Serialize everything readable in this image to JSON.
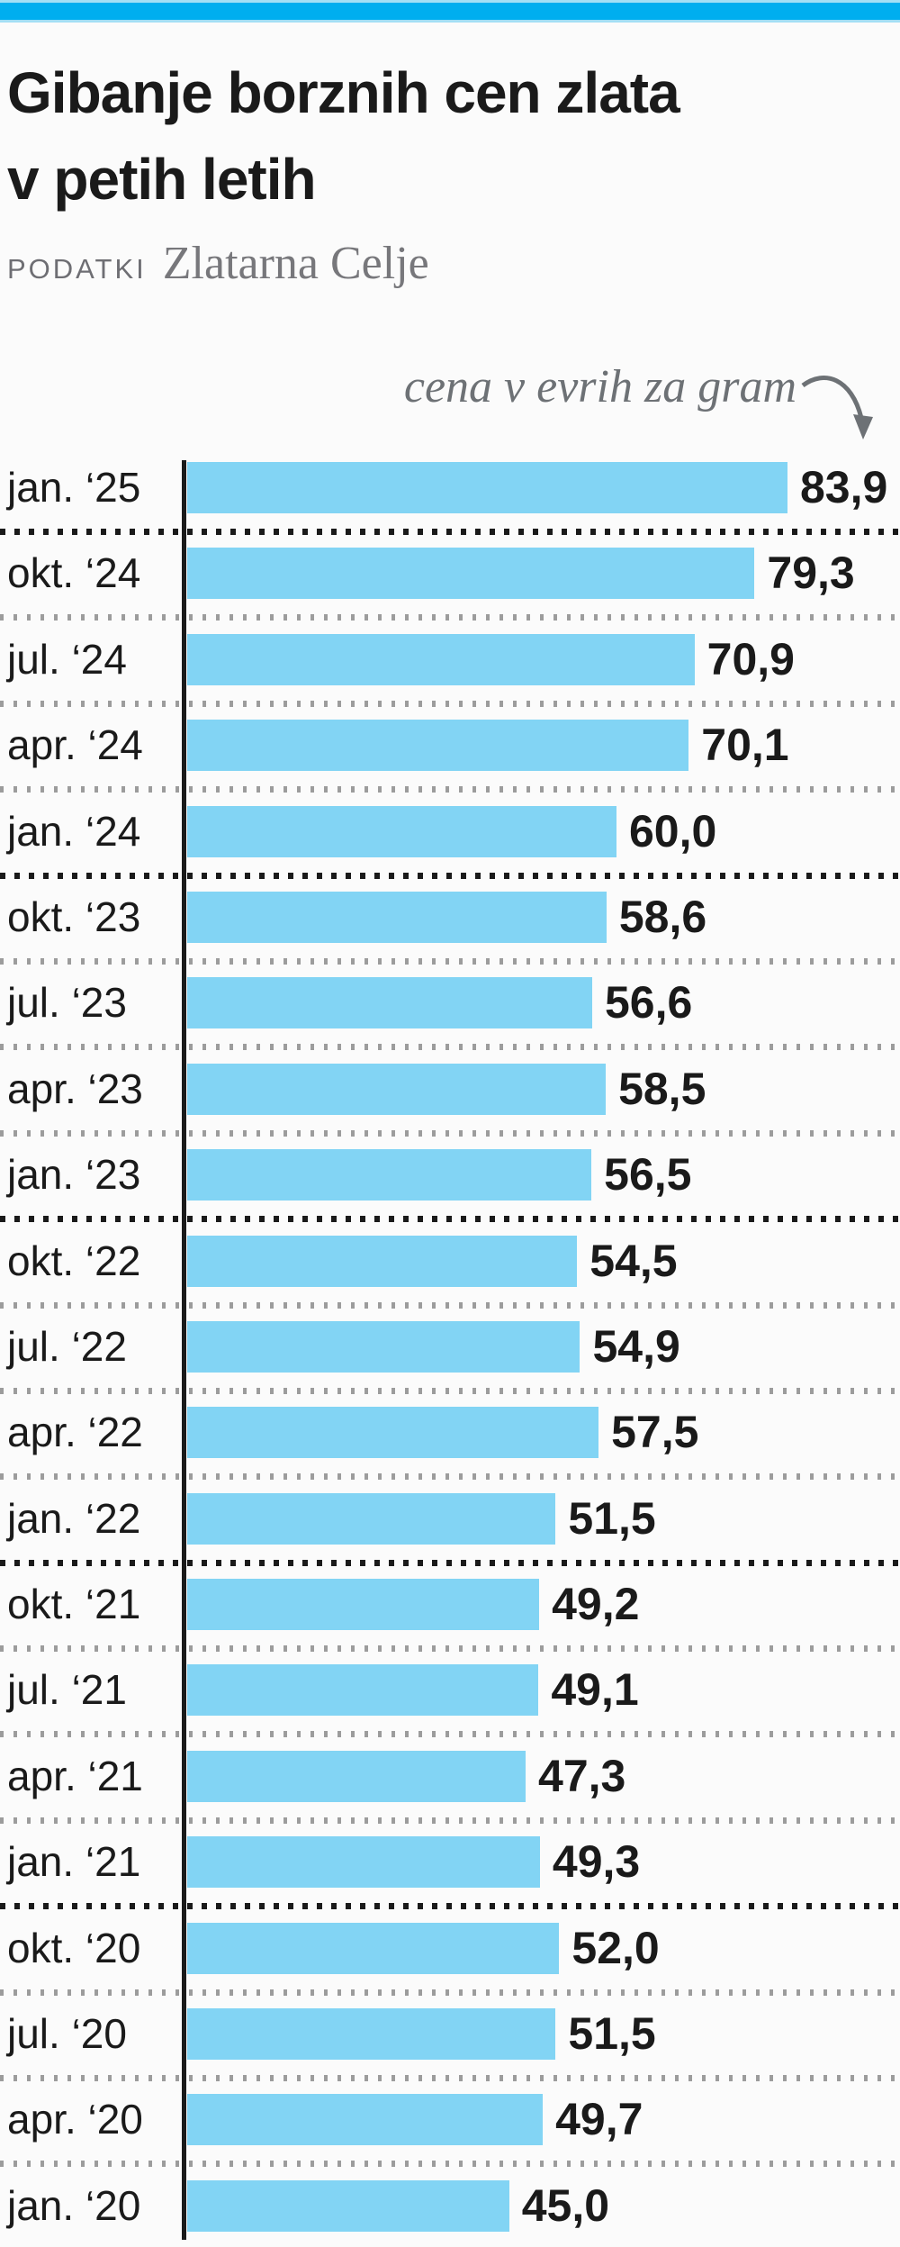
{
  "header": {
    "title_line1": "Gibanje borznih cen zlata",
    "title_line2": "v petih letih",
    "source_label": "PODATKI",
    "source_name": "Zlatarna Celje",
    "accent_color": "#00aeef"
  },
  "annotation": {
    "text": "cena v evrih za gram",
    "arrow_icon": "curved-arrow-down"
  },
  "chart_data": {
    "type": "bar",
    "orientation": "horizontal",
    "title": "Gibanje borznih cen zlata v petih letih",
    "source": "Zlatarna Celje",
    "unit_label": "cena v evrih za gram",
    "xlim": [
      0,
      84
    ],
    "grid": false,
    "bar_color": "#82d4f4",
    "categories": [
      "jan. ‘25",
      "okt. ‘24",
      "jul. ‘24",
      "apr. ‘24",
      "jan. ‘24",
      "okt. ‘23",
      "jul. ‘23",
      "apr. ‘23",
      "jan. ‘23",
      "okt. ‘22",
      "jul. ‘22",
      "apr. ‘22",
      "jan. ‘22",
      "okt. ‘21",
      "jul. ‘21",
      "apr. ‘21",
      "jan. ‘21",
      "okt. ‘20",
      "jul. ‘20",
      "apr. ‘20",
      "jan. ‘20"
    ],
    "values": [
      83.9,
      79.3,
      70.9,
      70.1,
      60.0,
      58.6,
      56.6,
      58.5,
      56.5,
      54.5,
      54.9,
      57.5,
      51.5,
      49.2,
      49.1,
      47.3,
      49.3,
      52.0,
      51.5,
      49.7,
      45.0
    ],
    "value_labels": [
      "83,9",
      "79,3",
      "70,9",
      "70,1",
      "60,0",
      "58,6",
      "56,6",
      "58,5",
      "56,5",
      "54,5",
      "54,9",
      "57,5",
      "51,5",
      "49,2",
      "49,1",
      "47,3",
      "49,3",
      "52,0",
      "51,5",
      "49,7",
      "45,0"
    ],
    "year_boundary_after_rows": [
      0,
      4,
      8,
      12,
      16
    ]
  }
}
